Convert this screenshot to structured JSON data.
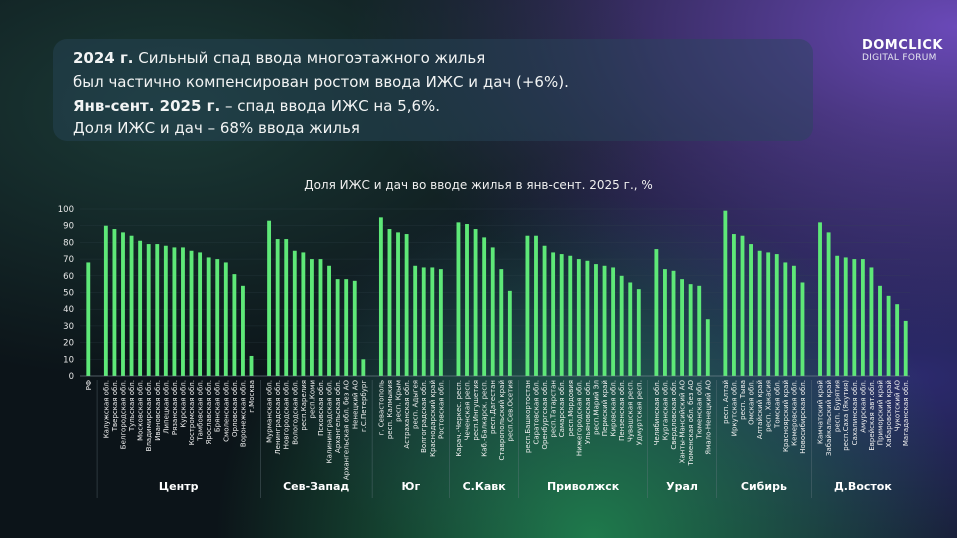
{
  "headline": {
    "line1_bold": "2024 г.",
    "line1_text": "Сильный спад ввода многоэтажного жилья",
    "line2_text": "был частично компенсирован ростом ввода ИЖС и дач (+6%).",
    "line3_bold": "Янв-сент. 2025 г.",
    "line3_text": "– спад ввода ИЖС на 5,6%.",
    "line4_text": "Доля ИЖС и дач – 68% ввода жилья"
  },
  "logo": {
    "brand": "DOMCLICK",
    "subtitle": "DIGITAL FORUM"
  },
  "colors": {
    "bar": "#5ee878",
    "grid": "#3a4a55"
  },
  "chart_data": {
    "type": "bar",
    "title": "Доля ИЖС и дач во вводе жилья в янв-сент. 2025 г., %",
    "ylim": [
      0,
      100
    ],
    "yticks": [
      0,
      10,
      20,
      30,
      40,
      50,
      60,
      70,
      80,
      90,
      100
    ],
    "groups": [
      {
        "name": "",
        "categories": [
          "РФ"
        ],
        "values": [
          68
        ]
      },
      {
        "name": "Центр",
        "categories": [
          "Калужская обл.",
          "Тверская обл.",
          "Белгородская обл.",
          "Тульская обл.",
          "Московская обл.",
          "Владимирская обл.",
          "Ивановская обл.",
          "Липецкая обл.",
          "Рязанская обл.",
          "Курская обл.",
          "Костромская обл.",
          "Тамбовская обл.",
          "Ярославская обл.",
          "Брянская обл.",
          "Смоленская обл.",
          "Орловская обл.",
          "Воронежская обл.",
          "г.Москва"
        ],
        "values": [
          90,
          88,
          86,
          84,
          81,
          79,
          79,
          78,
          77,
          77,
          75,
          74,
          71,
          70,
          68,
          61,
          54,
          12
        ]
      },
      {
        "name": "Сев-Запад",
        "categories": [
          "Мурманская обл.",
          "Ленинградская обл.",
          "Новгородская обл.",
          "Вологодская обл.",
          "респ.Карелия",
          "респ.Коми",
          "Псковская обл.",
          "Калининградская обл.",
          "Архангельская обл.",
          "Архангельская обл. без АО",
          "Ненецкий АО",
          "г.С.Петербург"
        ],
        "values": [
          93,
          82,
          82,
          75,
          74,
          70,
          70,
          66,
          58,
          58,
          57,
          10
        ]
      },
      {
        "name": "Юг",
        "categories": [
          "г. Севастополь",
          "респ. Калмыкия",
          "респ. Крым",
          "Астраханская обл.",
          "респ. Адыгея",
          "Волгоградская обл.",
          "Краснодарский край",
          "Ростовская обл."
        ],
        "values": [
          95,
          88,
          86,
          85,
          66,
          65,
          65,
          64
        ]
      },
      {
        "name": "С.Кавк",
        "categories": [
          "Карач.-Черкес. респ.",
          "Чеченская респ.",
          "респ.Ингушетия",
          "Каб.-Балкарск. респ.",
          "респ.Дагестан",
          "Ставропольский край",
          "респ.Сев.Осетия"
        ],
        "values": [
          92,
          91,
          88,
          83,
          77,
          64,
          51
        ]
      },
      {
        "name": "Приволжск",
        "categories": [
          "респ.Башкортостан",
          "Саратовская обл.",
          "Оренбургская обл.",
          "респ.Татарстан",
          "Самарская обл.",
          "респ.Мордовия",
          "Нижегородская обл.",
          "Ульяновская обл.",
          "респ.Марий Эл",
          "Пермский край",
          "Кировская обл.",
          "Пензенская обл.",
          "Чувашская респ.",
          "Удмуртская респ."
        ],
        "values": [
          84,
          84,
          78,
          74,
          73,
          72,
          70,
          69,
          67,
          66,
          65,
          60,
          56,
          52
        ]
      },
      {
        "name": "Урал",
        "categories": [
          "Челябинская обл.",
          "Курганская обл.",
          "Свердловская обл.",
          "Ханты-Мансийский АО",
          "Тюменская обл. без АО",
          "Тюменская обл.",
          "Ямало-Ненецкий АО"
        ],
        "values": [
          76,
          64,
          63,
          58,
          55,
          54,
          34
        ]
      },
      {
        "name": "Сибирь",
        "categories": [
          "респ. Алтай",
          "Иркутская обл.",
          "респ. Тыва",
          "Омская обл.",
          "Алтайский край",
          "респ. Хакасия",
          "Томская обл.",
          "Красноярский край",
          "Кемеровская обл.",
          "Новосибирская обл."
        ],
        "values": [
          99,
          85,
          84,
          79,
          75,
          74,
          73,
          68,
          66,
          56
        ]
      },
      {
        "name": "Д.Восток",
        "categories": [
          "Камчатский край",
          "Забайкальский край",
          "респ. Бурятия",
          "респ.Саха (Якутия)",
          "Сахалинская обл.",
          "Амурская обл.",
          "Еврейская авт.обл.",
          "Приморский край",
          "Хабаровский край",
          "Чукотский АО",
          "Магаданская обл."
        ],
        "values": [
          92,
          86,
          72,
          71,
          70,
          70,
          65,
          54,
          48,
          43,
          33
        ]
      }
    ]
  }
}
